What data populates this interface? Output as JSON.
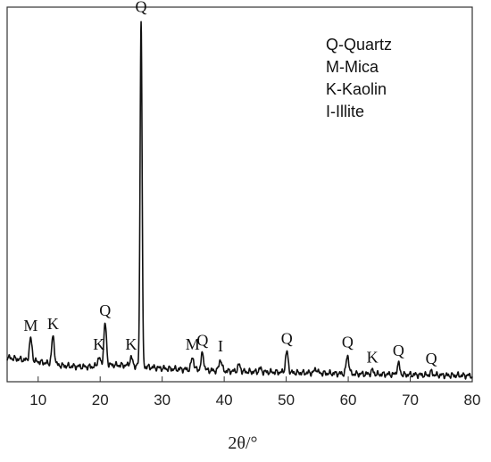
{
  "chart_data": {
    "type": "line",
    "xlabel": "2θ/°",
    "ylabel": "",
    "xlim": [
      5,
      80
    ],
    "ylim": [
      0,
      100
    ],
    "x_ticks": [
      10,
      20,
      30,
      40,
      50,
      60,
      70,
      80
    ],
    "y_ticks_shown": false,
    "grid": false,
    "legend_position": "top-right",
    "legend": [
      "Q-Quartz",
      "M-Mica",
      "K-Kaolin",
      "I-Illite"
    ],
    "line_color": "#111111",
    "baseline": {
      "x": [
        5,
        8,
        10,
        12,
        14,
        16,
        18,
        20,
        22,
        24,
        26,
        28,
        30,
        32,
        34,
        36,
        38,
        40,
        42,
        44,
        46,
        48,
        50,
        52,
        54,
        56,
        58,
        60,
        62,
        64,
        66,
        68,
        70,
        72,
        74,
        76,
        78,
        80
      ],
      "y": [
        6.5,
        5.8,
        5.4,
        4.8,
        4.3,
        4.1,
        4.0,
        4.2,
        4.5,
        4.4,
        4.2,
        3.9,
        3.6,
        3.4,
        3.3,
        3.2,
        3.0,
        2.9,
        2.8,
        2.7,
        2.6,
        2.6,
        2.5,
        2.4,
        2.4,
        2.3,
        2.2,
        2.1,
        2.1,
        2.0,
        2.0,
        1.9,
        1.9,
        1.8,
        1.8,
        1.7,
        1.7,
        1.6
      ]
    },
    "peaks": [
      {
        "x": 8.8,
        "y": 11.5,
        "label": "M"
      },
      {
        "x": 12.4,
        "y": 12.0,
        "label": "K"
      },
      {
        "x": 19.8,
        "y": 6.5,
        "label": "K"
      },
      {
        "x": 20.8,
        "y": 15.5,
        "label": "Q"
      },
      {
        "x": 25.0,
        "y": 6.5,
        "label": "K"
      },
      {
        "x": 26.6,
        "y": 97.0,
        "label": "Q"
      },
      {
        "x": 34.9,
        "y": 6.5,
        "label": "M"
      },
      {
        "x": 36.5,
        "y": 7.5,
        "label": "Q"
      },
      {
        "x": 39.4,
        "y": 6.0,
        "label": "I"
      },
      {
        "x": 42.4,
        "y": 4.5,
        "label": ""
      },
      {
        "x": 45.8,
        "y": 3.5,
        "label": ""
      },
      {
        "x": 50.1,
        "y": 8.0,
        "label": "Q"
      },
      {
        "x": 54.8,
        "y": 3.5,
        "label": ""
      },
      {
        "x": 59.9,
        "y": 7.0,
        "label": "Q"
      },
      {
        "x": 63.9,
        "y": 3.0,
        "label": "K"
      },
      {
        "x": 68.1,
        "y": 4.8,
        "label": "Q"
      },
      {
        "x": 73.4,
        "y": 2.6,
        "label": "Q"
      }
    ]
  }
}
